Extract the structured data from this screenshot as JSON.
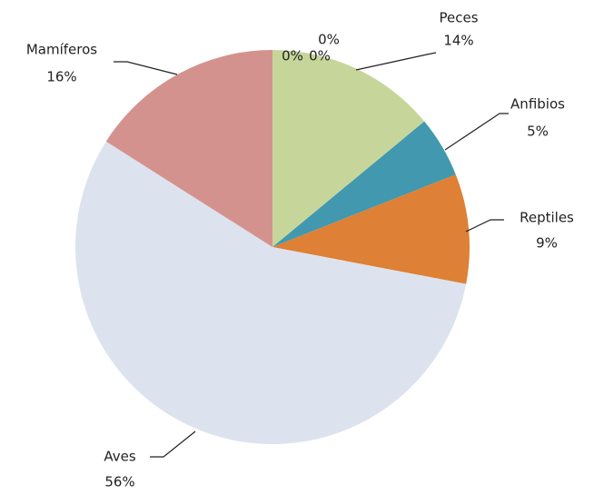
{
  "chart_data": {
    "type": "pie",
    "categories": [
      null,
      null,
      null,
      "Peces",
      "Anfibios",
      "Reptiles",
      "Aves",
      "Mamíferos"
    ],
    "values": [
      0,
      0,
      0,
      14,
      5,
      9,
      56,
      16
    ],
    "value_labels": [
      "0%",
      "0%",
      "0%",
      "14%",
      "5%",
      "9%",
      "56%",
      "16%"
    ],
    "colors": [
      "#4f81bd",
      "#c0504d",
      "#9bbb59",
      "#c6d69b",
      "#4198af",
      "#de8035",
      "#dde3ee",
      "#d4928f"
    ]
  }
}
